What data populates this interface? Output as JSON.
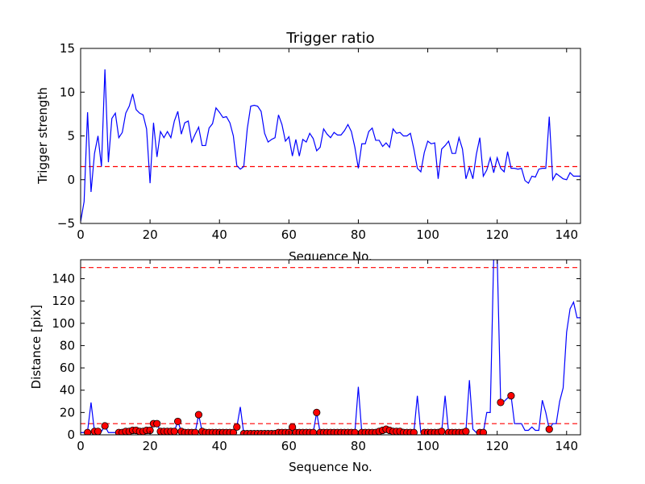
{
  "chart_data": [
    {
      "type": "line",
      "title": "Trigger ratio",
      "xlabel": "Sequence No.",
      "ylabel": "Trigger strength",
      "xlim": [
        0,
        144
      ],
      "ylim": [
        -5,
        15
      ],
      "xticks": [
        0,
        20,
        40,
        60,
        80,
        100,
        120,
        140
      ],
      "yticks": [
        -5,
        0,
        5,
        10,
        15
      ],
      "grid": false,
      "line_color": "#0000ff",
      "threshold": {
        "value": 1.5,
        "color": "#ff0000",
        "style": "dashed"
      },
      "series": [
        {
          "x": [
            0,
            1,
            2,
            3,
            4,
            5,
            6,
            7,
            8,
            9,
            10,
            11,
            12,
            13,
            14,
            15,
            16,
            17,
            18,
            19,
            20,
            21,
            22,
            23,
            24,
            25,
            26,
            27,
            28,
            29,
            30,
            31,
            32,
            33,
            34,
            35,
            36,
            37,
            38,
            39,
            40,
            41,
            42,
            43,
            44,
            45,
            46,
            47,
            48,
            49,
            50,
            51,
            52,
            53,
            54,
            55,
            56,
            57,
            58,
            59,
            60,
            61,
            62,
            63,
            64,
            65,
            66,
            67,
            68,
            69,
            70,
            71,
            72,
            73,
            74,
            75,
            76,
            77,
            78,
            79,
            80,
            81,
            82,
            83,
            84,
            85,
            86,
            87,
            88,
            89,
            90,
            91,
            92,
            93,
            94,
            95,
            96,
            97,
            98,
            99,
            100,
            101,
            102,
            103,
            104,
            105,
            106,
            107,
            108,
            109,
            110,
            111,
            112,
            113,
            114,
            115,
            116,
            117,
            118,
            119,
            120,
            121,
            122,
            123,
            124,
            125,
            126,
            127,
            128,
            129,
            130,
            131,
            132,
            133,
            134,
            135,
            136,
            137,
            138,
            139,
            140,
            141,
            142,
            143,
            144
          ],
          "values": [
            -4.8,
            -2.5,
            7.7,
            -1.4,
            3,
            5,
            1.5,
            12.6,
            2,
            7,
            7.6,
            4.8,
            5.4,
            7.6,
            8.4,
            9.8,
            8,
            7.6,
            7.4,
            5.8,
            -0.4,
            6.5,
            2.6,
            5.5,
            4.8,
            5.5,
            4.8,
            6.7,
            7.8,
            5.2,
            6.5,
            6.7,
            4.3,
            5.2,
            6,
            3.9,
            3.9,
            5.9,
            6.4,
            8.2,
            7.7,
            7.1,
            7.2,
            6.5,
            5,
            1.6,
            1.2,
            1.5,
            5.8,
            8.4,
            8.5,
            8.4,
            7.8,
            5.3,
            4.3,
            4.6,
            4.8,
            7.4,
            6.3,
            4.4,
            4.9,
            2.7,
            4.6,
            2.7,
            4.6,
            4.3,
            5.3,
            4.7,
            3.3,
            3.7,
            5.8,
            5.2,
            4.8,
            5.4,
            5.1,
            5.1,
            5.6,
            6.3,
            5.5,
            3.7,
            1.3,
            4.1,
            4.1,
            5.5,
            5.9,
            4.5,
            4.5,
            3.8,
            4.2,
            3.7,
            5.8,
            5.3,
            5.4,
            5,
            5,
            5.3,
            3.5,
            1.3,
            0.9,
            3.1,
            4.4,
            4.1,
            4.2,
            0.1,
            3.5,
            3.9,
            4.4,
            3,
            3,
            4.8,
            3.5,
            0.1,
            1.4,
            0.1,
            2.9,
            4.8,
            0.4,
            1.1,
            2.5,
            0.8,
            2.5,
            1.3,
            0.9,
            3.2,
            1.3,
            1.3,
            1.2,
            1.3,
            -0.1,
            -0.4,
            0.4,
            0.3,
            1.2,
            1.3,
            1.3,
            7.2,
            0,
            0.7,
            0.4,
            0.1,
            0,
            0.8,
            0.4,
            0.4,
            0.4
          ]
        }
      ]
    },
    {
      "type": "line",
      "title": "",
      "xlabel": "Sequence No.",
      "ylabel": "Distance [pix]",
      "xlim": [
        0,
        144
      ],
      "ylim": [
        0,
        157
      ],
      "xticks": [
        0,
        20,
        40,
        60,
        80,
        100,
        120,
        140
      ],
      "yticks": [
        0,
        20,
        40,
        60,
        80,
        100,
        120,
        140
      ],
      "grid": false,
      "line_color": "#0000ff",
      "marker_color": "#ff0000",
      "thresholds": [
        {
          "value": 150,
          "color": "#ff0000",
          "style": "dashed"
        },
        {
          "value": 10,
          "color": "#ff0000",
          "style": "dashed"
        }
      ],
      "series": [
        {
          "x": [
            0,
            1,
            2,
            3,
            4,
            5,
            6,
            7,
            8,
            9,
            10,
            11,
            12,
            13,
            14,
            15,
            16,
            17,
            18,
            19,
            20,
            21,
            22,
            23,
            24,
            25,
            26,
            27,
            28,
            29,
            30,
            31,
            32,
            33,
            34,
            35,
            36,
            37,
            38,
            39,
            40,
            41,
            42,
            43,
            44,
            45,
            46,
            47,
            48,
            49,
            50,
            51,
            52,
            53,
            54,
            55,
            56,
            57,
            58,
            59,
            60,
            61,
            62,
            63,
            64,
            65,
            66,
            67,
            68,
            69,
            70,
            71,
            72,
            73,
            74,
            75,
            76,
            77,
            78,
            79,
            80,
            81,
            82,
            83,
            84,
            85,
            86,
            87,
            88,
            89,
            90,
            91,
            92,
            93,
            94,
            95,
            96,
            97,
            98,
            99,
            100,
            101,
            102,
            103,
            104,
            105,
            106,
            107,
            108,
            109,
            110,
            111,
            112,
            113,
            114,
            115,
            116,
            117,
            118,
            119,
            120,
            121,
            122,
            123,
            124,
            125,
            126,
            127,
            128,
            129,
            130,
            131,
            132,
            133,
            134,
            135,
            136,
            137,
            138,
            139,
            140,
            141,
            142,
            143,
            144
          ],
          "values": [
            2,
            2,
            3,
            29,
            3,
            3,
            3,
            8,
            2,
            2,
            2,
            2,
            3,
            3,
            4,
            4,
            3,
            3,
            4,
            4,
            4,
            10,
            10,
            3,
            3,
            3,
            3,
            3,
            12,
            3,
            2,
            2,
            2,
            2,
            18,
            3,
            2,
            2,
            2,
            2,
            2,
            2,
            2,
            2,
            2,
            7,
            25,
            1,
            1,
            1,
            1,
            1,
            1,
            1,
            1,
            1,
            1,
            2,
            2,
            2,
            2,
            7,
            2,
            2,
            2,
            2,
            2,
            2,
            20,
            2,
            2,
            2,
            2,
            2,
            2,
            2,
            2,
            2,
            2,
            2,
            43,
            2,
            2,
            2,
            2,
            2,
            3,
            4,
            5,
            4,
            3,
            3,
            3,
            2,
            2,
            2,
            2,
            35,
            2,
            2,
            2,
            2,
            2,
            2,
            3,
            35,
            2,
            2,
            2,
            2,
            2,
            4,
            49,
            5,
            2,
            2,
            2,
            20,
            20,
            160,
            160,
            29,
            30,
            33,
            35,
            10,
            10,
            10,
            4,
            4,
            7,
            4,
            4,
            31,
            20,
            5,
            10,
            10,
            30,
            42,
            92,
            113,
            119,
            105,
            105
          ],
          "markers": {
            "x": [
              2,
              4,
              5,
              7,
              11,
              12,
              13,
              14,
              15,
              16,
              17,
              18,
              19,
              20,
              21,
              22,
              23,
              24,
              25,
              26,
              27,
              28,
              29,
              30,
              31,
              32,
              33,
              34,
              35,
              36,
              37,
              38,
              39,
              40,
              41,
              42,
              43,
              44,
              45,
              47,
              48,
              49,
              50,
              51,
              52,
              53,
              54,
              55,
              56,
              57,
              58,
              59,
              60,
              61,
              62,
              63,
              64,
              65,
              66,
              67,
              68,
              69,
              70,
              71,
              72,
              73,
              74,
              75,
              76,
              77,
              78,
              79,
              81,
              82,
              83,
              84,
              85,
              86,
              87,
              88,
              89,
              90,
              91,
              92,
              93,
              94,
              95,
              96,
              99,
              100,
              101,
              102,
              103,
              104,
              106,
              107,
              108,
              109,
              110,
              111,
              115,
              116,
              121,
              124,
              135
            ],
            "values": [
              2,
              3,
              3,
              8,
              2,
              2,
              3,
              3,
              4,
              4,
              3,
              3,
              4,
              4,
              10,
              10,
              3,
              3,
              3,
              3,
              3,
              12,
              3,
              2,
              2,
              2,
              2,
              18,
              3,
              2,
              2,
              2,
              2,
              2,
              2,
              2,
              2,
              2,
              7,
              1,
              1,
              1,
              1,
              1,
              1,
              1,
              1,
              1,
              1,
              2,
              2,
              2,
              2,
              7,
              2,
              2,
              2,
              2,
              2,
              2,
              20,
              2,
              2,
              2,
              2,
              2,
              2,
              2,
              2,
              2,
              2,
              2,
              2,
              2,
              2,
              2,
              2,
              3,
              4,
              5,
              4,
              3,
              3,
              3,
              2,
              2,
              2,
              2,
              2,
              2,
              2,
              2,
              2,
              3,
              2,
              2,
              2,
              2,
              2,
              3,
              2,
              2,
              29,
              35,
              5
            ]
          }
        }
      ]
    }
  ]
}
